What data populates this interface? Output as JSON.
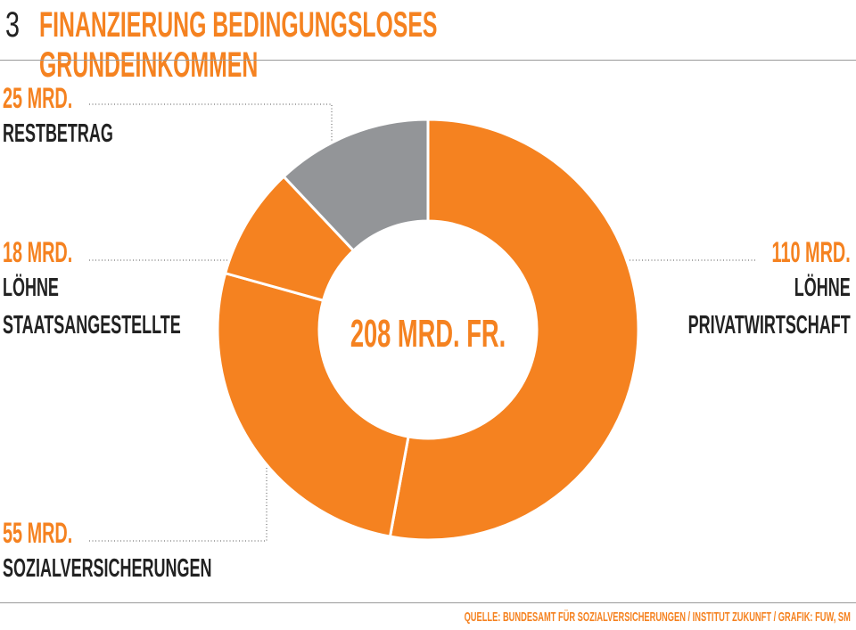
{
  "header": {
    "number": "3",
    "title": "FINANZIERUNG BEDINGUNGSLOSES GRUNDEINKOMMEN"
  },
  "center_label": "208 MRD. FR.",
  "source": "QUELLE: BUNDESAMT FÜR SOZIALVERSICHERUNGEN / INSTITUT ZUKUNFT / GRAFIK: FUW, SM",
  "colors": {
    "accent": "#f58220",
    "grey": "#939598",
    "text": "#222222"
  },
  "labels": {
    "restbetrag": {
      "value": "25 MRD.",
      "name1": "RESTBETRAG"
    },
    "staat": {
      "value": "18 MRD.",
      "name1": "LÖHNE",
      "name2": "STAATSANGESTELLTE"
    },
    "sozial": {
      "value": "55 MRD.",
      "name1": "SOZIALVERSICHERUNGEN"
    },
    "privat": {
      "value": "110 MRD.",
      "name1": "LÖHNE",
      "name2": "PRIVATWIRTSCHAFT"
    }
  },
  "chart_data": {
    "type": "pie",
    "donut": true,
    "total": 208,
    "unit": "MRD. FR.",
    "slices": [
      {
        "label": "LÖHNE PRIVATWIRTSCHAFT",
        "value": 110,
        "color": "#f58220"
      },
      {
        "label": "SOZIALVERSICHERUNGEN",
        "value": 55,
        "color": "#f58220"
      },
      {
        "label": "LÖHNE STAATSANGESTELLTE",
        "value": 18,
        "color": "#f58220"
      },
      {
        "label": "RESTBETRAG",
        "value": 25,
        "color": "#939598"
      }
    ]
  }
}
